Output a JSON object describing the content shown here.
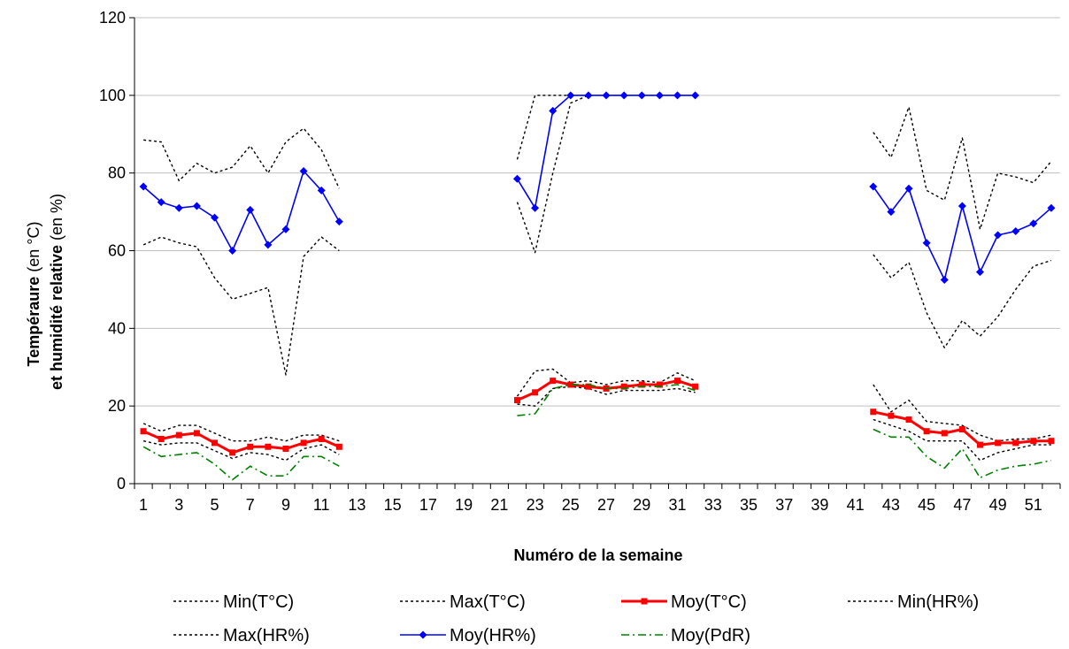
{
  "chart_data": {
    "type": "line",
    "xlabel": "Numéro de la semaine",
    "ylabel_line1_bold": "Tempéraure",
    "ylabel_line1_rest": " (en °C)",
    "ylabel_line2_bold": "et humidité relative",
    "ylabel_line2_rest": " (en %)",
    "ylim": [
      0,
      120
    ],
    "yticks": [
      0,
      20,
      40,
      60,
      80,
      100,
      120
    ],
    "xlim": [
      1,
      52
    ],
    "xticks": [
      1,
      3,
      5,
      7,
      9,
      11,
      13,
      15,
      17,
      19,
      21,
      23,
      25,
      27,
      29,
      31,
      33,
      35,
      37,
      39,
      41,
      43,
      45,
      47,
      49,
      51
    ],
    "grid": "horizontal",
    "legend_position": "bottom",
    "x": [
      1,
      2,
      3,
      4,
      5,
      6,
      7,
      8,
      9,
      10,
      11,
      12,
      22,
      23,
      24,
      25,
      26,
      27,
      28,
      29,
      30,
      31,
      32,
      42,
      43,
      44,
      45,
      46,
      47,
      48,
      49,
      50,
      51,
      52
    ],
    "series": [
      {
        "name": "Min(T°C)",
        "color": "#000000",
        "style": "dotted",
        "values": [
          11,
          10,
          10.5,
          10.5,
          8.5,
          6.5,
          8,
          7.5,
          6,
          9,
          10,
          7.5,
          20.5,
          20,
          24.5,
          25,
          24.5,
          23,
          24,
          24,
          24,
          24.5,
          23.5,
          16.5,
          15,
          13.5,
          11,
          11,
          11,
          6,
          8,
          9,
          10,
          10
        ]
      },
      {
        "name": "Max(T°C)",
        "color": "#000000",
        "style": "dotted",
        "values": [
          15.5,
          13.5,
          15,
          15,
          13,
          11,
          11,
          12,
          11,
          12.5,
          12.5,
          11,
          22.5,
          29,
          29.5,
          26,
          26.5,
          25.5,
          26.5,
          26.5,
          26,
          28.5,
          26.5,
          25.5,
          18.5,
          21.5,
          16,
          15.5,
          15,
          12.5,
          11,
          11.5,
          11.5,
          12.5
        ]
      },
      {
        "name": "Moy(T°C)",
        "color": "#ff0000",
        "style": "solid",
        "marker": "square",
        "values": [
          13.5,
          11.5,
          12.5,
          13,
          10.5,
          8,
          9.5,
          9.5,
          9,
          10.5,
          11.5,
          9.5,
          21.5,
          23.5,
          26.5,
          25.5,
          25,
          24.5,
          25,
          25.5,
          25.5,
          26.5,
          25,
          18.5,
          17.5,
          16.5,
          13.5,
          13,
          14,
          10,
          10.5,
          10.5,
          11,
          11
        ]
      },
      {
        "name": "Min(HR%)",
        "color": "#000000",
        "style": "dotted",
        "values": [
          61.5,
          63.5,
          62,
          61,
          53,
          47.5,
          49,
          50.5,
          28,
          58.5,
          63.5,
          60,
          72.5,
          59.5,
          80,
          98,
          100,
          100,
          100,
          100,
          100,
          100,
          100,
          59,
          53,
          57,
          44,
          35,
          42,
          38,
          43,
          50,
          56,
          57.5
        ]
      },
      {
        "name": "Max(HR%)",
        "color": "#000000",
        "style": "dotted",
        "values": [
          88.5,
          88,
          78,
          82.5,
          80,
          81.5,
          87,
          80,
          88,
          91.5,
          86,
          76,
          83.5,
          100,
          100,
          100,
          100,
          100,
          100,
          100,
          100,
          100,
          100,
          90.5,
          84,
          97,
          75.5,
          73,
          89,
          65.5,
          80,
          79,
          77.5,
          83
        ]
      },
      {
        "name": "Moy(HR%)",
        "color": "#0000ff",
        "style": "solid",
        "marker": "diamond",
        "values": [
          76.5,
          72.5,
          71,
          71.5,
          68.5,
          60,
          70.5,
          61.5,
          65.5,
          80.5,
          75.5,
          67.5,
          78.5,
          71,
          96,
          100,
          100,
          100,
          100,
          100,
          100,
          100,
          100,
          76.5,
          70,
          76,
          62,
          52.5,
          71.5,
          54.5,
          64,
          65,
          67,
          71
        ]
      },
      {
        "name": "Moy(PdR)",
        "color": "#008000",
        "style": "dashdot",
        "values": [
          9.5,
          7,
          7.5,
          8,
          5,
          1,
          4.5,
          2,
          2,
          7,
          7,
          4.5,
          17.5,
          18,
          24.5,
          25.5,
          25.5,
          24.5,
          24.5,
          25,
          25,
          25.5,
          24,
          14,
          12,
          12,
          7,
          4,
          9,
          1.5,
          3.5,
          4.5,
          5,
          6
        ]
      }
    ]
  }
}
